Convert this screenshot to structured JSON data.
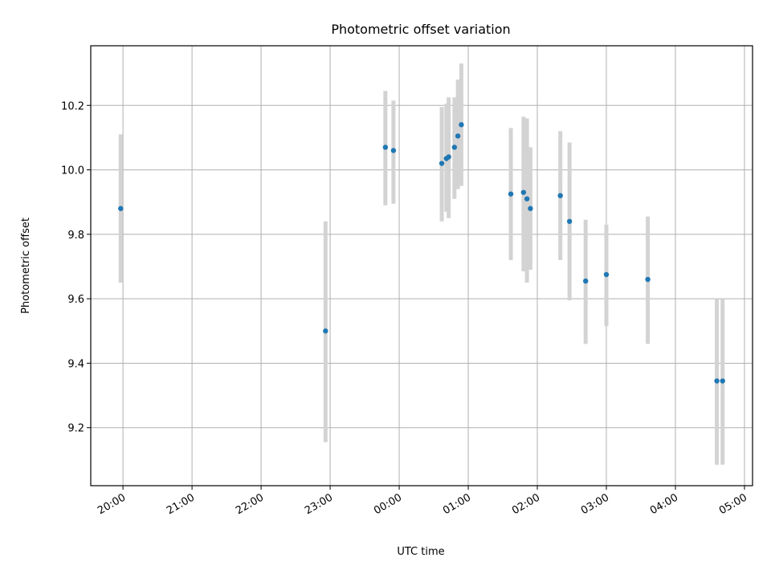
{
  "chart_data": {
    "type": "scatter",
    "title": "Photometric offset variation",
    "xlabel": "UTC time",
    "ylabel": "Photometric offset",
    "x_scale": "time",
    "x_ticks": [
      "20:00",
      "21:00",
      "22:00",
      "23:00",
      "00:00",
      "01:00",
      "02:00",
      "03:00",
      "04:00",
      "05:00"
    ],
    "x_tick_rotation_deg": 30,
    "xlim": [
      "19:32",
      "05:07"
    ],
    "ylim": [
      9.02,
      10.385
    ],
    "y_ticks": [
      9.2,
      9.4,
      9.6,
      9.8,
      10.0,
      10.2
    ],
    "y_tick_labels": [
      "9.2",
      "9.4",
      "9.6",
      "9.8",
      "10.0",
      "10.2"
    ],
    "grid": true,
    "point_color": "#1f77b4",
    "errorbar_color": "#d3d3d3",
    "points": [
      {
        "x": "19:58",
        "y": 9.88,
        "y_low": 9.65,
        "y_high": 10.11
      },
      {
        "x": "22:56",
        "y": 9.5,
        "y_low": 9.155,
        "y_high": 9.84
      },
      {
        "x": "23:48",
        "y": 10.07,
        "y_low": 9.89,
        "y_high": 10.245
      },
      {
        "x": "23:55",
        "y": 10.06,
        "y_low": 9.895,
        "y_high": 10.215
      },
      {
        "x": "00:37",
        "y": 10.02,
        "y_low": 9.84,
        "y_high": 10.195
      },
      {
        "x": "00:41",
        "y": 10.035,
        "y_low": 9.87,
        "y_high": 10.205
      },
      {
        "x": "00:43",
        "y": 10.04,
        "y_low": 9.85,
        "y_high": 10.225
      },
      {
        "x": "00:48",
        "y": 10.07,
        "y_low": 9.91,
        "y_high": 10.225
      },
      {
        "x": "00:51",
        "y": 10.105,
        "y_low": 9.94,
        "y_high": 10.28
      },
      {
        "x": "00:54",
        "y": 10.14,
        "y_low": 9.95,
        "y_high": 10.33
      },
      {
        "x": "01:37",
        "y": 9.925,
        "y_low": 9.72,
        "y_high": 10.13
      },
      {
        "x": "01:48",
        "y": 9.93,
        "y_low": 9.685,
        "y_high": 10.165
      },
      {
        "x": "01:51",
        "y": 9.91,
        "y_low": 9.65,
        "y_high": 10.16
      },
      {
        "x": "01:54",
        "y": 9.88,
        "y_low": 9.69,
        "y_high": 10.07
      },
      {
        "x": "02:20",
        "y": 9.92,
        "y_low": 9.72,
        "y_high": 10.12
      },
      {
        "x": "02:28",
        "y": 9.84,
        "y_low": 9.595,
        "y_high": 10.085
      },
      {
        "x": "02:42",
        "y": 9.655,
        "y_low": 9.46,
        "y_high": 9.845
      },
      {
        "x": "03:00",
        "y": 9.675,
        "y_low": 9.515,
        "y_high": 9.83
      },
      {
        "x": "03:36",
        "y": 9.66,
        "y_low": 9.46,
        "y_high": 9.855
      },
      {
        "x": "04:36",
        "y": 9.345,
        "y_low": 9.085,
        "y_high": 9.6
      },
      {
        "x": "04:41",
        "y": 9.345,
        "y_low": 9.085,
        "y_high": 9.6
      }
    ]
  }
}
